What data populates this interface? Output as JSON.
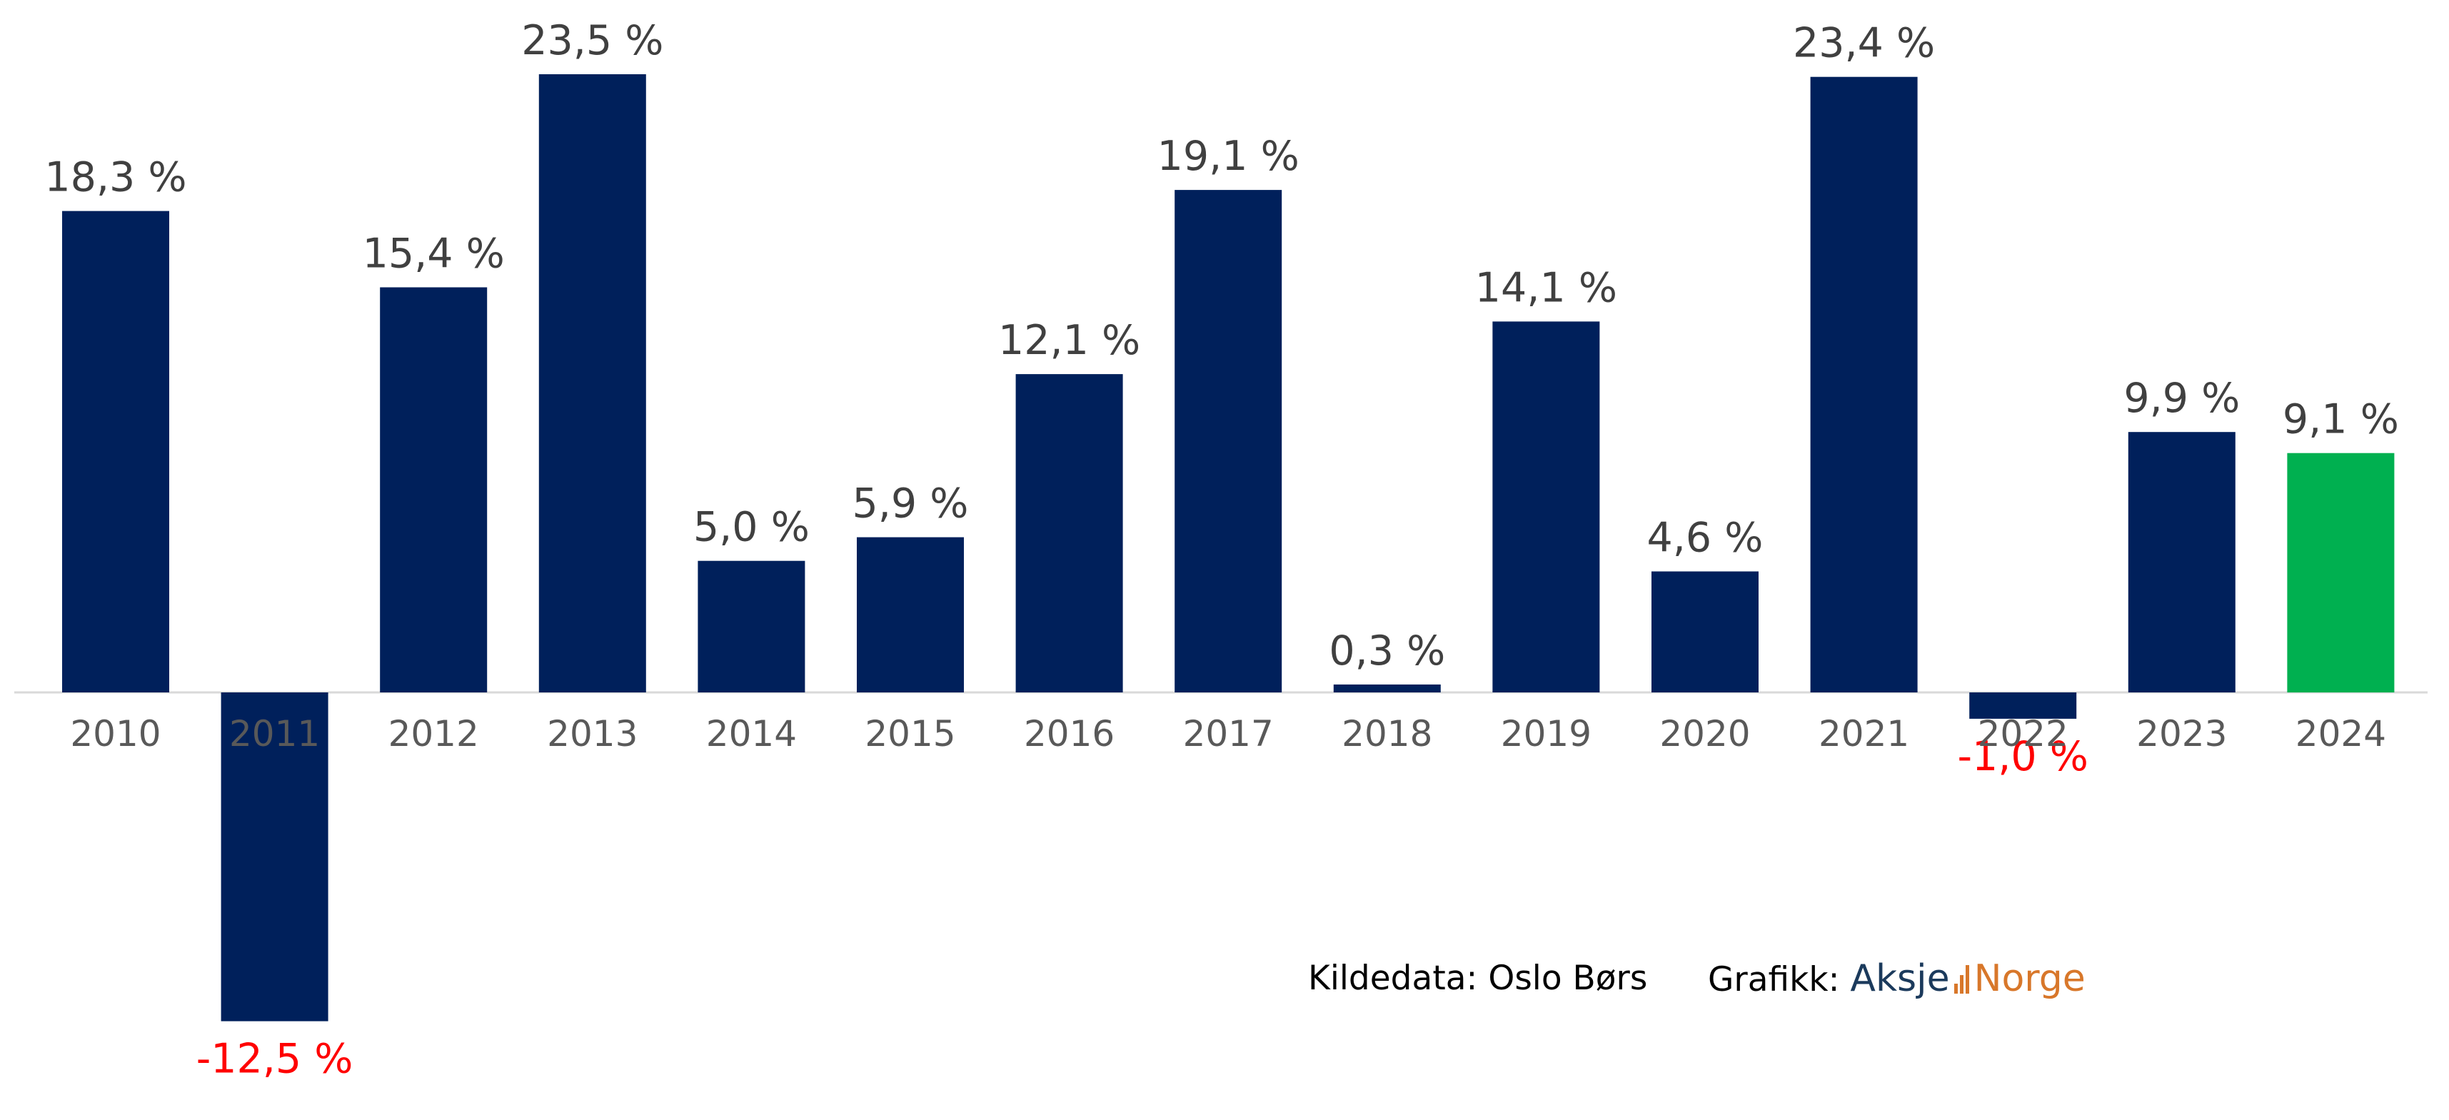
{
  "chart_data": {
    "type": "bar",
    "categories": [
      "2010",
      "2011",
      "2012",
      "2013",
      "2014",
      "2015",
      "2016",
      "2017",
      "2018",
      "2019",
      "2020",
      "2021",
      "2022",
      "2023",
      "2024"
    ],
    "values": [
      18.3,
      -12.5,
      15.4,
      23.5,
      5.0,
      5.9,
      12.1,
      19.1,
      0.3,
      14.1,
      4.6,
      23.4,
      -1.0,
      9.9,
      9.1
    ],
    "data_labels": [
      "18,3 %",
      "-12,5 %",
      "15,4 %",
      "23,5 %",
      "5,0 %",
      "5,9 %",
      "12,1 %",
      "19,1 %",
      "0,3 %",
      "14,1 %",
      "4,6 %",
      "23,4 %",
      "-1,0 %",
      "9,9 %",
      "9,1 %"
    ],
    "title": "",
    "xlabel": "",
    "ylabel": "",
    "ylim": [
      -12.5,
      23.5
    ],
    "grid": false,
    "legend": "none",
    "colors": {
      "bar": "#00205b",
      "highlight_bar": "#00b050",
      "highlight_index": 14,
      "positive_label": "#404040",
      "negative_label": "#ff0000",
      "tick_label": "#595959",
      "axis": "#d9d9d9"
    }
  },
  "footer": {
    "source_text": "Kildedata: Oslo Børs",
    "graphic_prefix": "Grafikk:",
    "brand_part1": "Aksje",
    "brand_part2": "Norge",
    "brand_icon": "bar-chart-icon"
  }
}
